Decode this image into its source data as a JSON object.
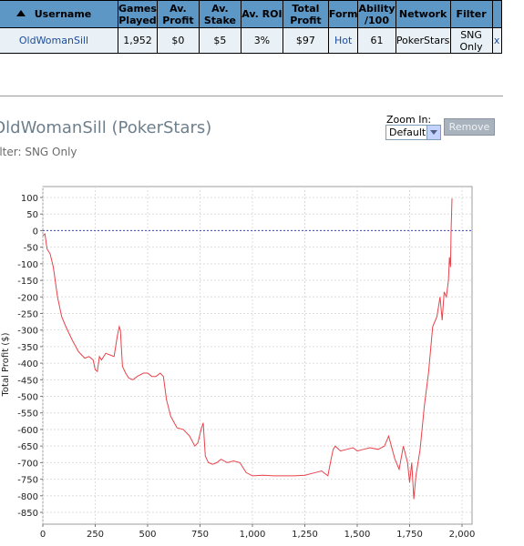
{
  "table": {
    "headers": [
      "Username",
      "Games Played",
      "Av. Profit",
      "Av. Stake",
      "Av. ROI",
      "Total Profit",
      "Form",
      "Ability /100",
      "Network",
      "Filter",
      ""
    ],
    "row": {
      "username": "OldWomanSill",
      "games_played": "1,952",
      "av_profit": "$0",
      "av_stake": "$5",
      "av_roi": "3%",
      "total_profit": "$97",
      "form": "Hot",
      "ability": "61",
      "network": "PokerStars",
      "filter": "SNG Only",
      "remove": "x"
    }
  },
  "player_title": "OldWomanSill (PokerStars)",
  "filter_line": "ilter: SNG Only",
  "zoom": {
    "label": "Zoom In:",
    "selected": "Default",
    "remove_label": "Remove"
  },
  "colors": {
    "header_bg": "#5d97c6",
    "row_bg": "#e9f1f6",
    "line": "#e8434b",
    "zero_line": "#3d3dd9"
  },
  "chart_data": {
    "type": "line",
    "xlabel": "",
    "ylabel": "Total Profit ($)",
    "xlim": [
      0,
      2000
    ],
    "ylim": [
      -850,
      100
    ],
    "x_ticks": [
      "0",
      "250",
      "500",
      "750",
      "1,000",
      "1,250",
      "1,500",
      "1,750",
      "2,000"
    ],
    "y_ticks": [
      "100",
      "50",
      "0",
      "-50",
      "-100",
      "-150",
      "-200",
      "-250",
      "-300",
      "-350",
      "-400",
      "-450",
      "-500",
      "-550",
      "-600",
      "-650",
      "-700",
      "-750",
      "-800",
      "-850"
    ],
    "grid": true,
    "series": [
      {
        "x": [
          0,
          10,
          20,
          35,
          50,
          70,
          90,
          110,
          140,
          170,
          200,
          220,
          240,
          250,
          260,
          270,
          280,
          300,
          320,
          340,
          355,
          365,
          370,
          380,
          395,
          410,
          430,
          450,
          480,
          500,
          520,
          540,
          560,
          575,
          590,
          610,
          640,
          670,
          700,
          725,
          740,
          755,
          765,
          775,
          790,
          810,
          830,
          850,
          880,
          910,
          940,
          970,
          1000,
          1050,
          1100,
          1150,
          1200,
          1250,
          1300,
          1330,
          1360,
          1375,
          1385,
          1395,
          1420,
          1450,
          1480,
          1500,
          1530,
          1560,
          1600,
          1630,
          1650,
          1680,
          1700,
          1720,
          1740,
          1750,
          1760,
          1770,
          1780,
          1790,
          1800,
          1820,
          1840,
          1860,
          1880,
          1895,
          1905,
          1915,
          1925,
          1935,
          1940,
          1945,
          1948,
          1952
        ],
        "y": [
          -15,
          -10,
          -55,
          -70,
          -110,
          -200,
          -260,
          -290,
          -330,
          -365,
          -385,
          -380,
          -390,
          -420,
          -425,
          -380,
          -390,
          -370,
          -375,
          -380,
          -320,
          -290,
          -300,
          -410,
          -430,
          -445,
          -450,
          -440,
          -430,
          -430,
          -440,
          -440,
          -430,
          -440,
          -510,
          -560,
          -595,
          -600,
          -620,
          -650,
          -640,
          -600,
          -580,
          -680,
          -700,
          -705,
          -700,
          -690,
          -700,
          -695,
          -700,
          -730,
          -740,
          -738,
          -740,
          -740,
          -740,
          -738,
          -730,
          -725,
          -740,
          -690,
          -660,
          -650,
          -665,
          -660,
          -655,
          -665,
          -660,
          -655,
          -660,
          -650,
          -620,
          -690,
          -720,
          -650,
          -700,
          -760,
          -700,
          -810,
          -740,
          -700,
          -660,
          -530,
          -430,
          -290,
          -260,
          -200,
          -270,
          -185,
          -200,
          -150,
          -80,
          -110,
          0,
          97
        ]
      }
    ]
  }
}
